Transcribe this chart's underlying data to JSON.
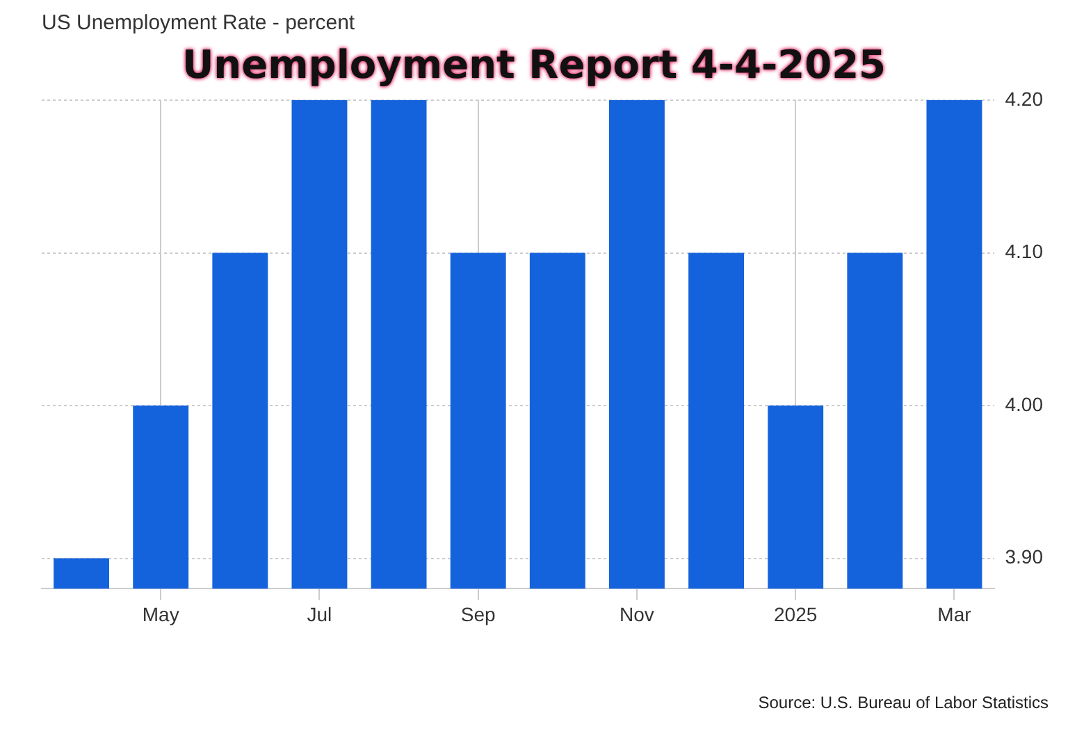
{
  "chart_data": {
    "type": "bar",
    "title": "Unemployment Report 4-4-2025",
    "subtitle": "US Unemployment Rate - percent",
    "categories": [
      null,
      "May",
      null,
      "Jul",
      null,
      "Sep",
      null,
      "Nov",
      null,
      "2025",
      null,
      "Mar"
    ],
    "values": [
      3.9,
      4.0,
      4.1,
      4.2,
      4.2,
      4.1,
      4.1,
      4.2,
      4.1,
      4.0,
      4.1,
      4.2
    ],
    "color": "#1462dc",
    "ylim": [
      3.88,
      4.2
    ],
    "yticks": [
      {
        "value": 3.9,
        "label": "3.90"
      },
      {
        "value": 4.0,
        "label": "4.00"
      },
      {
        "value": 4.1,
        "label": "4.10"
      },
      {
        "value": 4.2,
        "label": "4.20"
      }
    ],
    "grid": true,
    "legend": false,
    "annotations": [
      "Source: U.S. Bureau of Labor Statistics"
    ]
  }
}
